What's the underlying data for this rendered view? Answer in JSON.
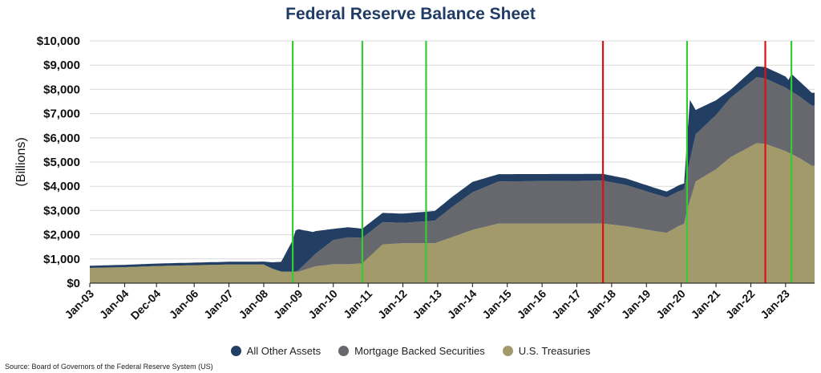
{
  "chart_data": {
    "type": "area",
    "title": "Federal Reserve Balance Sheet",
    "ylabel": "(Billions)",
    "xlabel": "",
    "ylim": [
      0,
      10000
    ],
    "y_ticks": [
      "$0",
      "$1,000",
      "$2,000",
      "$3,000",
      "$4,000",
      "$5,000",
      "$6,000",
      "$7,000",
      "$8,000",
      "$9,000",
      "$10,000"
    ],
    "x_ticks": [
      {
        "date": "2003-01",
        "label": "Jan-03"
      },
      {
        "date": "2004-01",
        "label": "Jan-04"
      },
      {
        "date": "2004-12",
        "label": "Dec-04"
      },
      {
        "date": "2006-01",
        "label": "Jan-06"
      },
      {
        "date": "2007-01",
        "label": "Jan-07"
      },
      {
        "date": "2008-01",
        "label": "Jan-08"
      },
      {
        "date": "2009-01",
        "label": "Jan-09"
      },
      {
        "date": "2010-01",
        "label": "Jan-10"
      },
      {
        "date": "2011-01",
        "label": "Jan-11"
      },
      {
        "date": "2012-01",
        "label": "Jan-12"
      },
      {
        "date": "2013-01",
        "label": "Jan-13"
      },
      {
        "date": "2014-01",
        "label": "Jan-14"
      },
      {
        "date": "2015-01",
        "label": "Jan-15"
      },
      {
        "date": "2016-01",
        "label": "Jan-16"
      },
      {
        "date": "2017-01",
        "label": "Jan-17"
      },
      {
        "date": "2018-01",
        "label": "Jan-18"
      },
      {
        "date": "2019-01",
        "label": "Jan-19"
      },
      {
        "date": "2020-01",
        "label": "Jan-20"
      },
      {
        "date": "2021-01",
        "label": "Jan-21"
      },
      {
        "date": "2022-01",
        "label": "Jan-22"
      },
      {
        "date": "2023-01",
        "label": "Jan-23"
      }
    ],
    "stacking": "stacked",
    "series": [
      {
        "name": "U.S. Treasuries",
        "color": "#a39a6b",
        "points": [
          [
            "2003-01",
            630
          ],
          [
            "2004-01",
            660
          ],
          [
            "2005-01",
            710
          ],
          [
            "2006-01",
            740
          ],
          [
            "2007-01",
            770
          ],
          [
            "2008-01",
            770
          ],
          [
            "2008-04",
            600
          ],
          [
            "2008-07",
            480
          ],
          [
            "2009-01",
            475
          ],
          [
            "2009-07",
            700
          ],
          [
            "2010-01",
            780
          ],
          [
            "2010-06",
            780
          ],
          [
            "2010-11",
            820
          ],
          [
            "2011-06",
            1600
          ],
          [
            "2012-01",
            1650
          ],
          [
            "2012-12",
            1650
          ],
          [
            "2013-06",
            1900
          ],
          [
            "2014-01",
            2200
          ],
          [
            "2014-10",
            2460
          ],
          [
            "2015-06",
            2460
          ],
          [
            "2017-10",
            2460
          ],
          [
            "2018-06",
            2350
          ],
          [
            "2019-04",
            2150
          ],
          [
            "2019-08",
            2080
          ],
          [
            "2019-12",
            2350
          ],
          [
            "2020-02",
            2450
          ],
          [
            "2020-03",
            3000
          ],
          [
            "2020-06",
            4200
          ],
          [
            "2021-01",
            4700
          ],
          [
            "2021-06",
            5200
          ],
          [
            "2022-03",
            5780
          ],
          [
            "2022-06",
            5750
          ],
          [
            "2023-01",
            5450
          ],
          [
            "2023-06",
            5150
          ],
          [
            "2023-10",
            4850
          ]
        ]
      },
      {
        "name": "Mortgage Backed Securities",
        "color": "#66686d",
        "points": [
          [
            "2003-01",
            0
          ],
          [
            "2008-12",
            0
          ],
          [
            "2009-01",
            60
          ],
          [
            "2009-06",
            450
          ],
          [
            "2010-01",
            1000
          ],
          [
            "2010-06",
            1110
          ],
          [
            "2010-11",
            1050
          ],
          [
            "2011-06",
            920
          ],
          [
            "2012-01",
            840
          ],
          [
            "2012-12",
            930
          ],
          [
            "2013-06",
            1250
          ],
          [
            "2014-01",
            1550
          ],
          [
            "2014-10",
            1740
          ],
          [
            "2017-10",
            1770
          ],
          [
            "2018-06",
            1700
          ],
          [
            "2019-08",
            1460
          ],
          [
            "2020-02",
            1420
          ],
          [
            "2020-06",
            1950
          ],
          [
            "2021-06",
            2450
          ],
          [
            "2022-03",
            2720
          ],
          [
            "2022-06",
            2700
          ],
          [
            "2023-01",
            2620
          ],
          [
            "2023-10",
            2480
          ]
        ]
      },
      {
        "name": "All Other Assets",
        "color": "#223e62",
        "points": [
          [
            "2003-01",
            90
          ],
          [
            "2008-01",
            120
          ],
          [
            "2008-07",
            400
          ],
          [
            "2008-11",
            1300
          ],
          [
            "2008-12",
            1700
          ],
          [
            "2009-01",
            1690
          ],
          [
            "2009-06",
            1000
          ],
          [
            "2010-01",
            460
          ],
          [
            "2010-06",
            420
          ],
          [
            "2010-11",
            380
          ],
          [
            "2011-06",
            380
          ],
          [
            "2012-01",
            380
          ],
          [
            "2012-12",
            400
          ],
          [
            "2014-01",
            430
          ],
          [
            "2014-10",
            300
          ],
          [
            "2017-10",
            280
          ],
          [
            "2018-06",
            270
          ],
          [
            "2019-08",
            240
          ],
          [
            "2020-02",
            250
          ],
          [
            "2020-04",
            2480
          ],
          [
            "2020-06",
            1000
          ],
          [
            "2021-06",
            330
          ],
          [
            "2022-03",
            450
          ],
          [
            "2022-06",
            470
          ],
          [
            "2023-01",
            460
          ],
          [
            "2023-02",
            390
          ],
          [
            "2023-03",
            720
          ],
          [
            "2023-06",
            620
          ],
          [
            "2023-10",
            530
          ]
        ]
      }
    ],
    "vertical_markers": [
      {
        "date": "2008-11",
        "color": "#33cc33"
      },
      {
        "date": "2010-11",
        "color": "#33cc33"
      },
      {
        "date": "2012-09",
        "color": "#33cc33"
      },
      {
        "date": "2017-10",
        "color": "#dd1111"
      },
      {
        "date": "2020-03",
        "color": "#33cc33"
      },
      {
        "date": "2022-06",
        "color": "#dd1111"
      },
      {
        "date": "2023-03",
        "color": "#33cc33"
      }
    ],
    "grid": true,
    "legend": "bottom",
    "source": "Source: Board of Governors of the Federal Reserve System (US)"
  }
}
